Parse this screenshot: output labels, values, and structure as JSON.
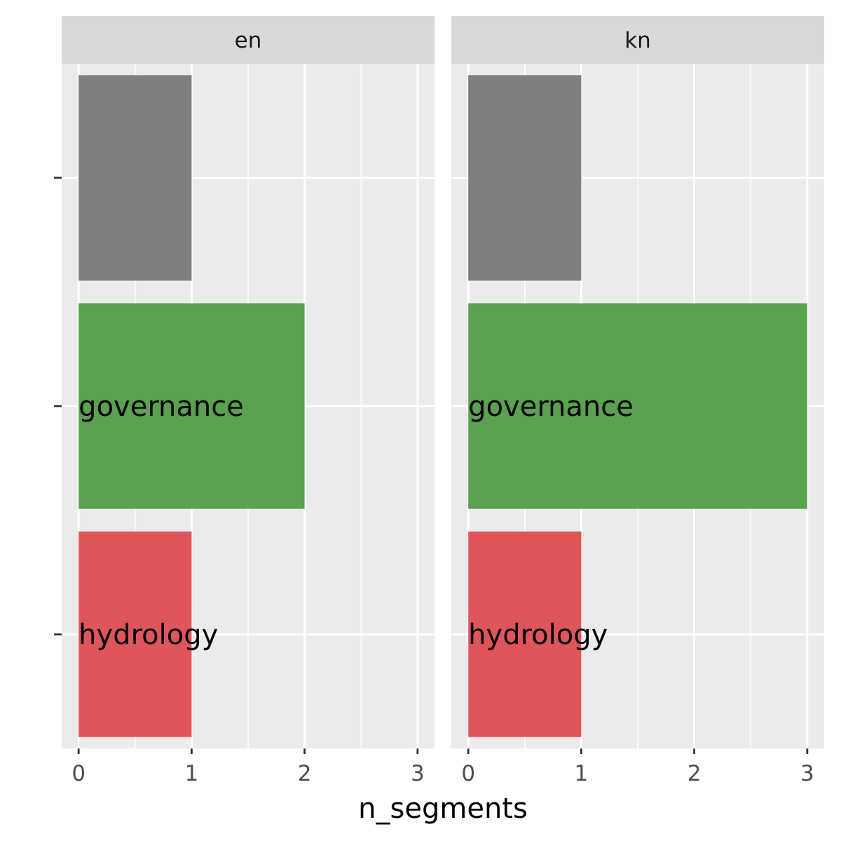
{
  "chart_data": {
    "type": "bar",
    "orientation": "horizontal",
    "facet_by": "language",
    "facets": [
      {
        "name": "en",
        "bars": [
          {
            "label": "",
            "value": 1,
            "color": "#7f7f7f"
          },
          {
            "label": "governance",
            "value": 2,
            "color": "#5aa150"
          },
          {
            "label": "hydrology",
            "value": 1,
            "color": "#e0555a"
          }
        ]
      },
      {
        "name": "kn",
        "bars": [
          {
            "label": "",
            "value": 1,
            "color": "#7f7f7f"
          },
          {
            "label": "governance",
            "value": 3,
            "color": "#5aa150"
          },
          {
            "label": "hydrology",
            "value": 1,
            "color": "#e0555a"
          }
        ]
      }
    ],
    "xlabel": "n_segments",
    "ylabel": "",
    "x_ticks": [
      "0",
      "1",
      "2",
      "3"
    ],
    "xlim": [
      -0.15,
      3.15
    ],
    "grid": true,
    "legend": "none"
  }
}
